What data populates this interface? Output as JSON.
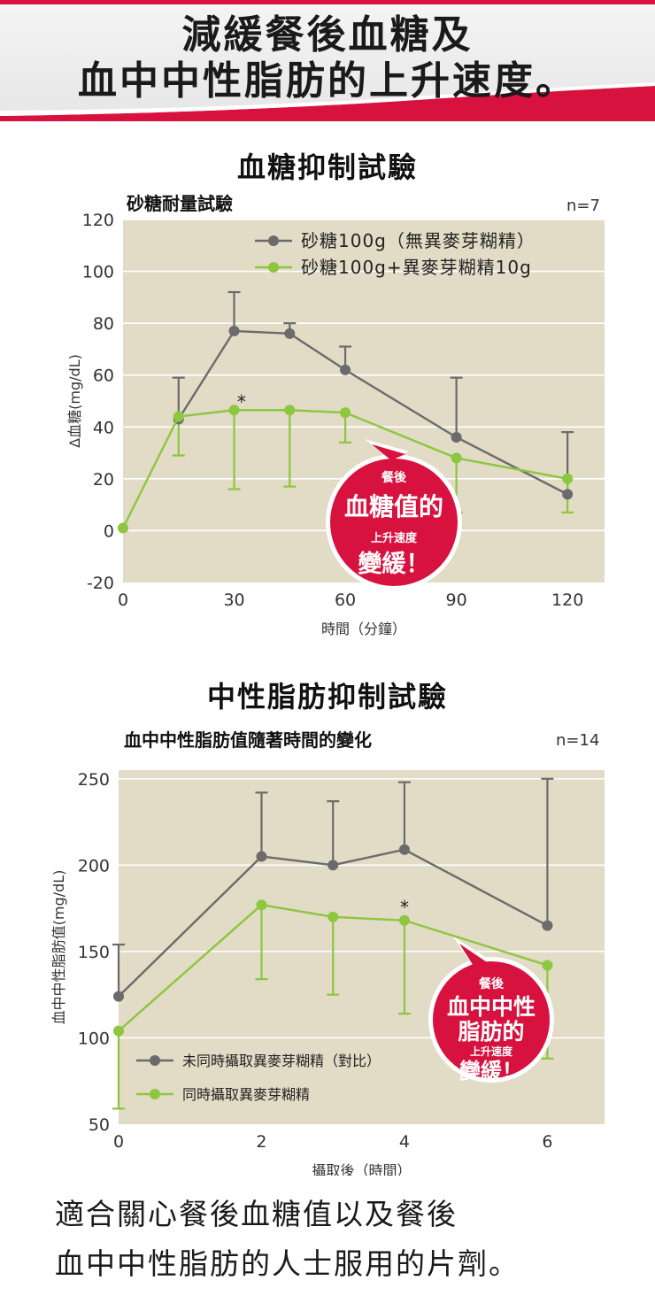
{
  "header": {
    "line1": "減緩餐後血糖及",
    "line2": "血中中性脂肪的上升速度。"
  },
  "colors": {
    "accent": "#d8123f",
    "gray_series": "#6b6b6b",
    "green_series": "#8dc63f",
    "plot_bg": "#e2dbc6"
  },
  "footer": {
    "line1": "適合關心餐後血糖值以及餐後",
    "line2": "血中中性脂肪的人士服用的片劑。"
  },
  "chart_data": [
    {
      "type": "line",
      "title": "血糖抑制試驗",
      "subtitle": "砂糖耐量試驗",
      "n_label": "n=7",
      "xlabel": "時間（分鐘）",
      "ylabel": "Δ血糖(mg/dL)",
      "xlim": [
        0,
        130
      ],
      "ylim": [
        -20,
        120
      ],
      "xticks": [
        0,
        30,
        60,
        90,
        120
      ],
      "yticks": [
        -20,
        0,
        20,
        40,
        60,
        80,
        100,
        120
      ],
      "grid": true,
      "legend_position": "top-right",
      "series": [
        {
          "name": "砂糖100g（無異麥芽糊精）",
          "color": "#6b6b6b",
          "x": [
            15,
            30,
            45,
            60,
            90,
            120
          ],
          "y": [
            43,
            77,
            76,
            62,
            36,
            14
          ],
          "err_upper": [
            59,
            92,
            80,
            71,
            59,
            38
          ]
        },
        {
          "name": "砂糖100g+異麥芽糊精10g",
          "color": "#8dc63f",
          "x": [
            0,
            15,
            30,
            45,
            60,
            90,
            120
          ],
          "y": [
            1,
            44,
            46.5,
            46.5,
            45.5,
            28,
            20
          ],
          "err_lower": [
            1,
            29,
            16,
            17,
            34,
            7,
            7
          ]
        }
      ],
      "annotations": [
        {
          "text": "*",
          "x": 32,
          "y": 50
        }
      ],
      "callout": {
        "lines": [
          "餐後",
          "血糖值的",
          "上升速度",
          "變緩！"
        ]
      }
    },
    {
      "type": "line",
      "title": "中性脂肪抑制試驗",
      "subtitle": "血中中性脂肪值隨著時間的變化",
      "n_label": "n=14",
      "xlabel": "攝取後（時間）",
      "ylabel": "血中中性脂肪值(mg/dL)",
      "xlim": [
        0,
        6.8
      ],
      "ylim": [
        50,
        255
      ],
      "xticks": [
        0,
        2,
        4,
        6
      ],
      "yticks": [
        50,
        100,
        150,
        200,
        250
      ],
      "grid": true,
      "legend_position": "bottom-left",
      "series": [
        {
          "name": "未同時攝取異麥芽糊精（對比）",
          "color": "#6b6b6b",
          "x": [
            0,
            2,
            3,
            4,
            6
          ],
          "y": [
            124,
            205,
            200,
            209,
            165
          ],
          "err_upper": [
            154,
            242,
            237,
            248,
            250
          ]
        },
        {
          "name": "同時攝取異麥芽糊精",
          "color": "#8dc63f",
          "x": [
            0,
            2,
            3,
            4,
            6
          ],
          "y": [
            104,
            177,
            170,
            168,
            142
          ],
          "err_lower": [
            59,
            134,
            125,
            114,
            88
          ]
        }
      ],
      "annotations": [
        {
          "text": "*",
          "x": 4,
          "y": 176
        }
      ],
      "callout": {
        "lines": [
          "餐後",
          "血中中性",
          "脂肪的",
          "上升速度",
          "變緩！"
        ]
      }
    }
  ]
}
